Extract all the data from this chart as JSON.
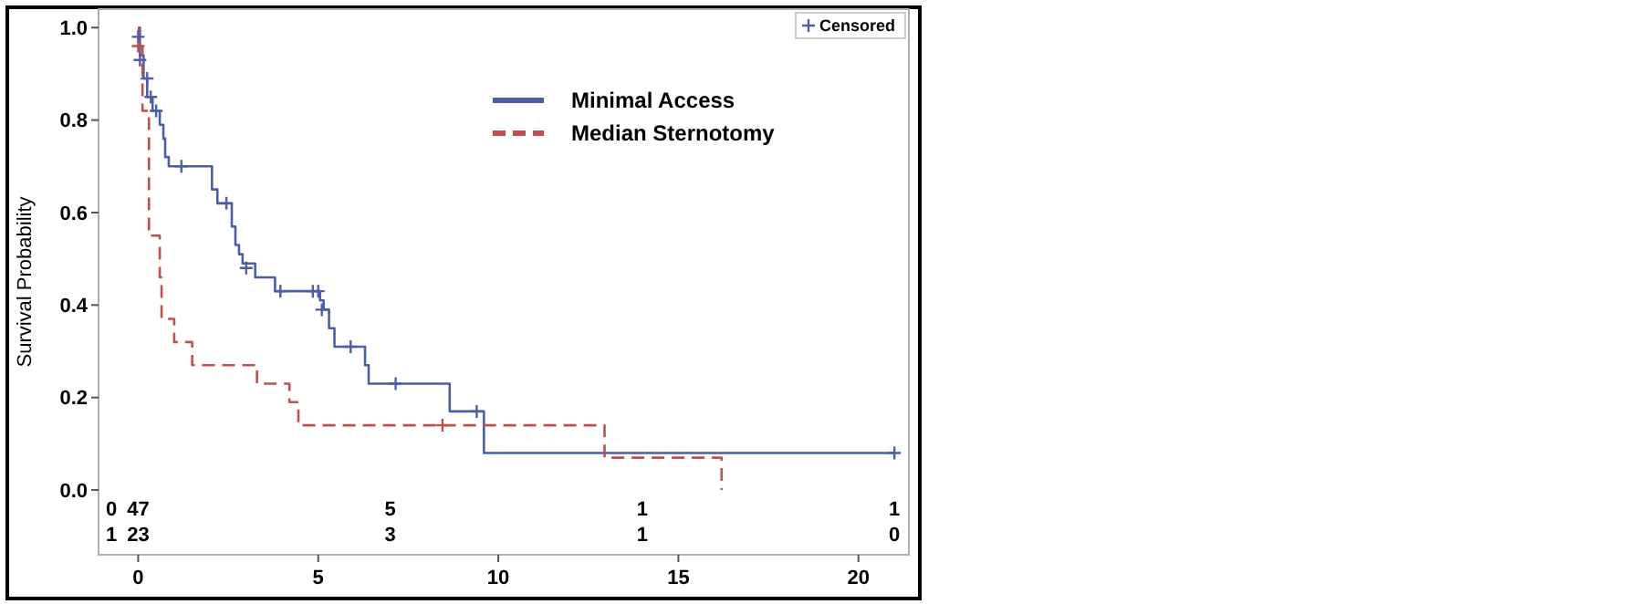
{
  "chart_data": {
    "type": "step",
    "ylabel": "Survival Probability",
    "xlim": [
      -1.1,
      21.4
    ],
    "ylim": [
      -0.14,
      1.04
    ],
    "xticks": [
      0,
      5,
      10,
      15,
      20
    ],
    "yticks": [
      {
        "value": 0,
        "label": "0.0"
      },
      {
        "value": 0.2,
        "label": "0.2"
      },
      {
        "value": 0.4,
        "label": "0.4"
      },
      {
        "value": 0.6,
        "label": "0.6"
      },
      {
        "value": 0.8,
        "label": "0.8"
      },
      {
        "value": 1,
        "label": "1.0"
      }
    ],
    "grid": false,
    "legend": "top right",
    "series": [
      {
        "name": "Minimal Access",
        "color": "#4a5fa8",
        "line_style": "solid",
        "x": [
          0,
          0.05,
          0.15,
          0.25,
          0.4,
          0.6,
          0.7,
          0.75,
          0.85,
          2.05,
          2.2,
          2.6,
          2.7,
          2.8,
          2.9,
          3.25,
          3.8,
          5.05,
          5.15,
          5.3,
          5.45,
          6.3,
          6.4,
          8.65,
          9.6,
          21.0
        ],
        "values": [
          1.0,
          0.94,
          0.89,
          0.85,
          0.82,
          0.79,
          0.76,
          0.72,
          0.7,
          0.65,
          0.62,
          0.57,
          0.53,
          0.51,
          0.49,
          0.46,
          0.43,
          0.41,
          0.39,
          0.35,
          0.31,
          0.27,
          0.23,
          0.17,
          0.08,
          0.08
        ]
      },
      {
        "name": "Median Sternotomy",
        "color": "#c0504d",
        "line_style": "dashed",
        "x": [
          0,
          0.02,
          0.12,
          0.3,
          0.6,
          0.65,
          1.0,
          1.5,
          3.3,
          4.2,
          4.45,
          12.95,
          16.2
        ],
        "values": [
          1.0,
          0.96,
          0.82,
          0.55,
          0.46,
          0.37,
          0.32,
          0.27,
          0.23,
          0.19,
          0.14,
          0.07,
          0.0
        ]
      },
      {
        "name": "Censored",
        "type": "scatter",
        "marker": "cross",
        "color": "#4a5fa8",
        "x": [
          0,
          0.05,
          0.25,
          0.35,
          0.5,
          1.2,
          2.45,
          3.0,
          3.95,
          4.85,
          5.0,
          5.1,
          5.9,
          7.15,
          9.4,
          21.0
        ],
        "values": [
          0.98,
          0.93,
          0.89,
          0.85,
          0.82,
          0.7,
          0.62,
          0.48,
          0.43,
          0.43,
          0.43,
          0.39,
          0.31,
          0.23,
          0.17,
          0.08
        ]
      },
      {
        "type": "scatter",
        "marker": "cross",
        "color": "#c0504d",
        "x": [
          0.0,
          8.45
        ],
        "values": [
          0.96,
          0.14
        ]
      }
    ],
    "annotations": [
      "0",
      "47",
      "5",
      "1",
      "1",
      "1",
      "23",
      "3",
      "1",
      "0"
    ]
  }
}
